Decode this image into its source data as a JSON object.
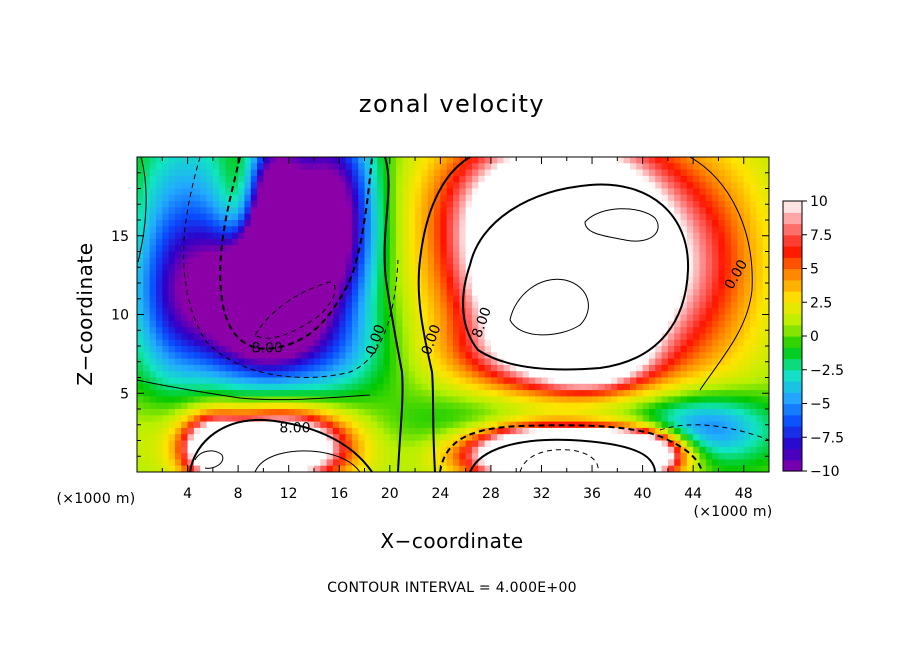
{
  "chart_data": {
    "type": "heatmap",
    "title": "zonal velocity",
    "xlabel": "X−coordinate",
    "ylabel": "Z−coordinate",
    "x_unit": "(×1000 m)",
    "y_unit": "(×1000 m)",
    "xlim": [
      0,
      50
    ],
    "ylim": [
      0,
      20
    ],
    "x_ticks": [
      4,
      8,
      12,
      16,
      20,
      24,
      28,
      32,
      36,
      40,
      44,
      48
    ],
    "x_tick_labels": [
      "4",
      "8",
      "12",
      "16",
      "20",
      "24",
      "28",
      "32",
      "36",
      "40",
      "44",
      "48"
    ],
    "y_ticks": [
      5,
      10,
      15
    ],
    "y_tick_labels": [
      "5",
      "10",
      "15"
    ],
    "colorbar": {
      "range": [
        -10,
        10
      ],
      "ticks": [
        10,
        7.5,
        5,
        2.5,
        0,
        -2.5,
        -5,
        -7.5,
        -10
      ],
      "tick_labels": [
        "10",
        "7.5",
        "5",
        "2.5",
        "0",
        "−2.5",
        "−5",
        "−7.5",
        "−10"
      ],
      "colors": [
        "#8c00a8",
        "#2e00c8",
        "#0a4cff",
        "#22a8ff",
        "#11e6c0",
        "#00c800",
        "#b6f000",
        "#ffe400",
        "#ff8a00",
        "#ff1400",
        "#ff7f7f",
        "#ffffff"
      ]
    },
    "contour_interval_note": "CONTOUR INTERVAL = 4.000E+00",
    "contour_labels": [
      {
        "text": "8.00",
        "x": 12.5,
        "y": 2.5
      },
      {
        "text": "8.00",
        "x": 10.3,
        "y": 7.6
      },
      {
        "text": "0.00",
        "x": 19.2,
        "y": 8.3
      },
      {
        "text": "0.00",
        "x": 23.6,
        "y": 8.3
      },
      {
        "text": "8.00",
        "x": 27.6,
        "y": 9.4
      },
      {
        "text": "0.00",
        "x": 47.7,
        "y": 12.4
      }
    ],
    "features": [
      {
        "value": 18,
        "x": 9.8,
        "y": 16.5,
        "sx": 1.9,
        "sy": 3.4
      },
      {
        "value": -24,
        "x": 10.5,
        "y": 16.5,
        "sx": 1.6,
        "sy": 3.2
      },
      {
        "value": -14,
        "x": 10.5,
        "y": 11.5,
        "sx": 2.3,
        "sy": 2.4
      },
      {
        "value": -8,
        "x": 9.5,
        "y": 14.0,
        "sx": 4.5,
        "sy": 5.5
      },
      {
        "value": -10,
        "x": 15.5,
        "y": 16.0,
        "sx": 2.4,
        "sy": 4.5
      },
      {
        "value": -6,
        "x": 6.5,
        "y": 11.0,
        "sx": 4.0,
        "sy": 3.0
      },
      {
        "value": -3,
        "x": 14.0,
        "y": 7.5,
        "sx": 5.0,
        "sy": 2.0
      },
      {
        "value": 21,
        "x": 34.5,
        "y": 13.0,
        "sx": 5.2,
        "sy": 4.4
      },
      {
        "value": 6,
        "x": 36.0,
        "y": 14.0,
        "sx": 8.5,
        "sy": 6.5
      },
      {
        "value": 4,
        "x": 30.0,
        "y": 17.5,
        "sx": 5.0,
        "sy": 3.0
      },
      {
        "value": 3,
        "x": 31.5,
        "y": 7.5,
        "sx": 6.0,
        "sy": 1.5
      },
      {
        "value": 6,
        "x": 36.0,
        "y": 7.2,
        "sx": 2.5,
        "sy": 1.2
      },
      {
        "value": 2,
        "x": 46.0,
        "y": 13.0,
        "sx": 3.0,
        "sy": 5.0
      },
      {
        "value": -5,
        "x": 34.0,
        "y": 2.8,
        "sx": 8.0,
        "sy": 1.6
      },
      {
        "value": -3,
        "x": 44.0,
        "y": 2.5,
        "sx": 4.0,
        "sy": 1.6
      },
      {
        "value": 26,
        "x": 33.0,
        "y": 1.2,
        "sx": 4.5,
        "sy": 1.2
      },
      {
        "value": 18,
        "x": 39.5,
        "y": 1.2,
        "sx": 2.5,
        "sy": 1.0
      },
      {
        "value": 16,
        "x": 11.5,
        "y": 1.6,
        "sx": 3.2,
        "sy": 1.4
      },
      {
        "value": 12,
        "x": 6.0,
        "y": 1.5,
        "sx": 1.6,
        "sy": 1.3
      },
      {
        "value": 4,
        "x": 9.0,
        "y": 2.0,
        "sx": 6.5,
        "sy": 2.2
      },
      {
        "value": -3,
        "x": 2.5,
        "y": 13.0,
        "sx": 2.0,
        "sy": 6.0
      },
      {
        "value": -2,
        "x": 46.0,
        "y": 3.0,
        "sx": 3.0,
        "sy": 1.5
      }
    ]
  }
}
